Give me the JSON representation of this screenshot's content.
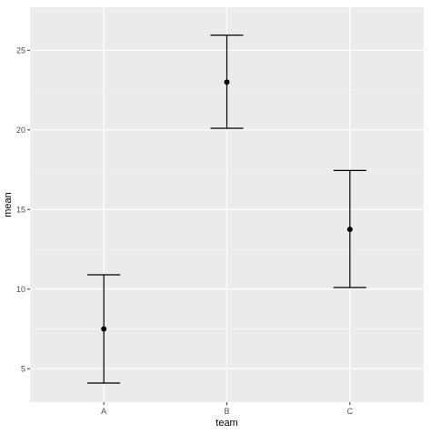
{
  "chart_data": {
    "type": "errorbar",
    "categories": [
      "A",
      "B",
      "C"
    ],
    "series": [
      {
        "values": [
          7.5,
          23.0,
          13.75
        ],
        "lower": [
          4.1,
          20.1,
          10.1
        ],
        "upper": [
          10.9,
          25.95,
          17.45
        ]
      }
    ],
    "xlabel": "team",
    "ylabel": "mean",
    "ylim": [
      2.9,
      27.7
    ],
    "yticks": [
      5,
      10,
      15,
      20,
      25
    ],
    "grid": true,
    "colors": {
      "panel_background": "#ebebeb",
      "grid": "#ffffff",
      "marks": "#000000",
      "tick_label": "#4d4d4d"
    }
  }
}
